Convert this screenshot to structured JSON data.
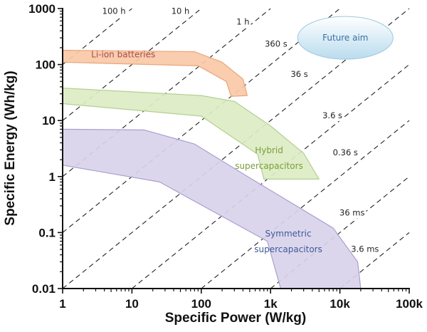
{
  "chart_data": {
    "type": "area",
    "title": "",
    "xlabel": "Specific Power (W/kg)",
    "ylabel": "Specific Energy (Wh/kg)",
    "xscale": "log",
    "yscale": "log",
    "xlim": [
      1,
      100000
    ],
    "ylim": [
      0.01,
      1000
    ],
    "x_ticks": [
      {
        "value": 1,
        "label": "1"
      },
      {
        "value": 10,
        "label": "10"
      },
      {
        "value": 100,
        "label": "100"
      },
      {
        "value": 1000,
        "label": "1k"
      },
      {
        "value": 10000,
        "label": "10k"
      },
      {
        "value": 100000,
        "label": "100k"
      }
    ],
    "y_ticks": [
      {
        "value": 0.01,
        "label": "0.01"
      },
      {
        "value": 0.1,
        "label": "0.1"
      },
      {
        "value": 1,
        "label": "1"
      },
      {
        "value": 10,
        "label": "10"
      },
      {
        "value": 100,
        "label": "100"
      },
      {
        "value": 1000,
        "label": "1000"
      }
    ],
    "grid": false,
    "time_lines": [
      {
        "label": "100 h",
        "hours": 100,
        "label_at": [
          5.5,
          800
        ]
      },
      {
        "label": "10 h",
        "hours": 10,
        "label_at": [
          50,
          800
        ]
      },
      {
        "label": "1 h",
        "hours": 1,
        "label_at": [
          400,
          520
        ]
      },
      {
        "label": "360 s",
        "hours": 0.1,
        "label_at": [
          1200,
          210
        ]
      },
      {
        "label": "36 s",
        "hours": 0.01,
        "label_at": [
          2600,
          60
        ]
      },
      {
        "label": "3.6 s",
        "hours": 0.001,
        "label_at": [
          7800,
          11
        ]
      },
      {
        "label": "0.36 s",
        "hours": 0.0001,
        "label_at": [
          12000,
          2.4
        ]
      },
      {
        "label": "36 ms",
        "hours": 1e-05,
        "label_at": [
          15000,
          0.2
        ]
      },
      {
        "label": "3.6 ms",
        "hours": 1e-06,
        "label_at": [
          23000,
          0.045
        ]
      }
    ],
    "regions": [
      {
        "name": "Li-ion batteries",
        "fill": "#f9c9a6",
        "stroke": "#e8a57c",
        "text_color": "#a64b4b",
        "label_at": [
          7.5,
          135
        ],
        "points": [
          [
            1,
            180
          ],
          [
            80,
            170
          ],
          [
            200,
            110
          ],
          [
            400,
            55
          ],
          [
            460,
            28
          ],
          [
            270,
            27
          ],
          [
            230,
            50
          ],
          [
            90,
            95
          ],
          [
            1,
            110
          ]
        ]
      },
      {
        "name": "Hybrid supercapacitors",
        "label_lines": [
          "Hybrid",
          "supercapacitors"
        ],
        "fill": "#dcebc4",
        "stroke": "#b4cf91",
        "text_color": "#7a9e3a",
        "label_at": [
          950,
          2.6
        ],
        "points": [
          [
            1,
            38
          ],
          [
            100,
            28
          ],
          [
            300,
            22
          ],
          [
            1000,
            8
          ],
          [
            3000,
            2.6
          ],
          [
            5000,
            0.9
          ],
          [
            800,
            0.9
          ],
          [
            650,
            2.5
          ],
          [
            100,
            12
          ],
          [
            1,
            20
          ]
        ]
      },
      {
        "name": "Symmetric supercapacitors",
        "label_lines": [
          "Symmetric",
          "supercapacitors"
        ],
        "fill": "#d9d3ec",
        "stroke": "#a99fcf",
        "text_color": "#3f5a99",
        "label_at": [
          1800,
          0.085
        ],
        "points": [
          [
            1,
            7
          ],
          [
            15,
            6.8
          ],
          [
            80,
            3.8
          ],
          [
            500,
            0.95
          ],
          [
            8000,
            0.12
          ],
          [
            18000,
            0.03
          ],
          [
            20000,
            0.01
          ],
          [
            1400,
            0.01
          ],
          [
            900,
            0.07
          ],
          [
            25,
            0.8
          ],
          [
            1,
            1.6
          ]
        ]
      }
    ],
    "annotations": [
      {
        "text": "Future aim",
        "shape": "ellipse",
        "center": [
          12000,
          300
        ],
        "fill": "#cbe4f1",
        "text_color": "#3a6ea5"
      }
    ]
  }
}
